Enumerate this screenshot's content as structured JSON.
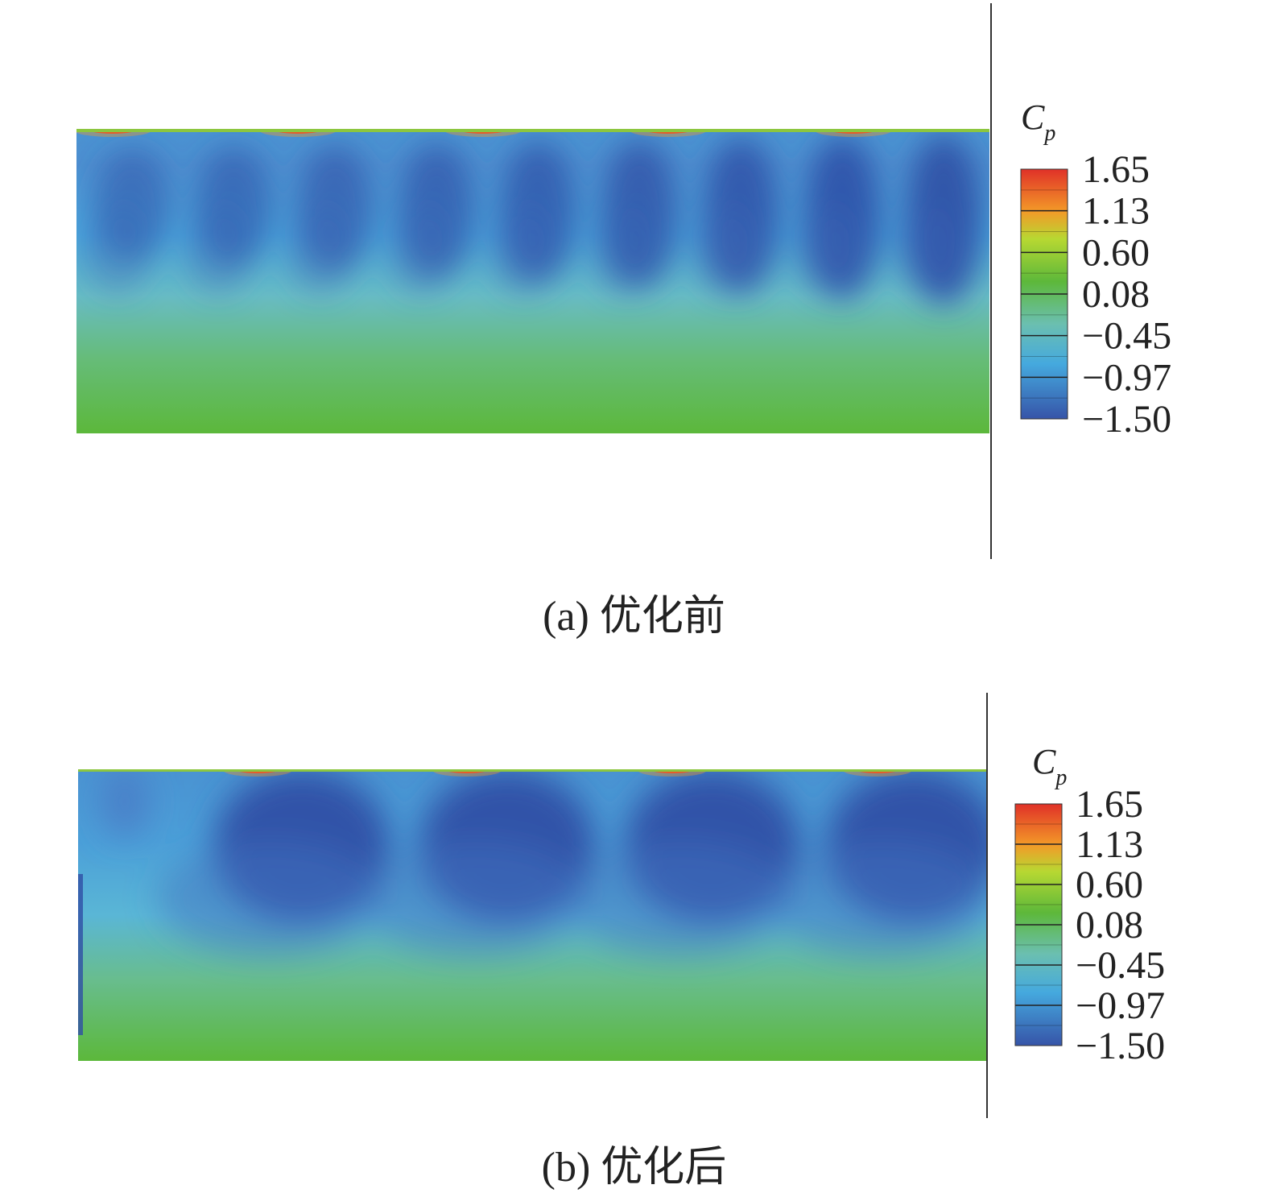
{
  "chart_data": [
    {
      "type": "heatmap",
      "caption": "(a) 优化前",
      "colorbar": {
        "title_main": "C",
        "title_sub": "p",
        "ticks": [
          "1.65",
          "1.13",
          "0.60",
          "0.08",
          "−0.45",
          "−0.97",
          "−1.50"
        ],
        "range": [
          -1.5,
          1.65
        ]
      },
      "value_range": [
        -1.5,
        1.65
      ],
      "cells": 9,
      "pattern": "blue low-pressure cells below top edge, green near bottom"
    },
    {
      "type": "heatmap",
      "caption": "(b) 优化后",
      "colorbar": {
        "title_main": "C",
        "title_sub": "p",
        "ticks": [
          "1.65",
          "1.13",
          "0.60",
          "0.08",
          "−0.45",
          "−0.97",
          "−1.50"
        ],
        "range": [
          -1.5,
          1.65
        ]
      },
      "value_range": [
        -1.5,
        1.65
      ],
      "cells": 4,
      "pattern": "four large rounded low-pressure lobes, wavy transition to green"
    }
  ],
  "colors": {
    "red": "#e03128",
    "orange": "#f39a28",
    "yellow_green": "#b7d832",
    "green": "#5db83a",
    "teal": "#6bbfb0",
    "light_blue": "#45a9de",
    "blue": "#3654a8"
  }
}
